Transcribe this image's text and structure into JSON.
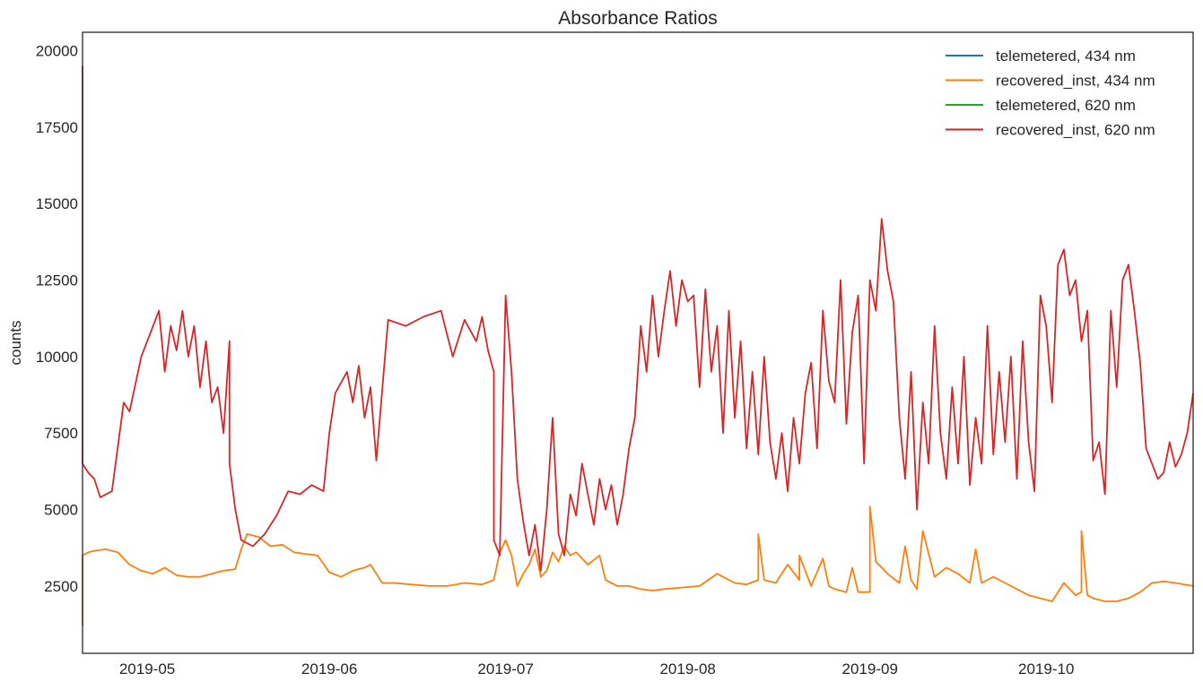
{
  "chart_data": {
    "type": "line",
    "title": "Absorbance Ratios",
    "xlabel": "",
    "ylabel": "counts",
    "x_tick_labels": [
      "2019-05",
      "2019-06",
      "2019-07",
      "2019-08",
      "2019-09",
      "2019-10"
    ],
    "x_tick_dates": [
      "2019-05-01",
      "2019-06-01",
      "2019-07-01",
      "2019-08-01",
      "2019-09-01",
      "2019-10-01"
    ],
    "xlim": [
      "2019-04-20",
      "2019-10-26"
    ],
    "y_tick_labels": [
      "2500",
      "5000",
      "7500",
      "10000",
      "12500",
      "15000",
      "17500",
      "20000"
    ],
    "y_tick_values": [
      2500,
      5000,
      7500,
      10000,
      12500,
      15000,
      17500,
      20000
    ],
    "ylim": [
      300,
      20600
    ],
    "grid": false,
    "legend_position": "top-right",
    "series": [
      {
        "name": "telemetered, 434 nm",
        "color": "#1f77b4",
        "x": [],
        "y": []
      },
      {
        "name": "recovered_inst, 434 nm",
        "color": "#ff7f0e",
        "x": [
          "2019-04-20",
          "2019-04-20",
          "2019-04-21",
          "2019-04-22",
          "2019-04-24",
          "2019-04-26",
          "2019-04-28",
          "2019-04-30",
          "2019-05-02",
          "2019-05-04",
          "2019-05-06",
          "2019-05-08",
          "2019-05-10",
          "2019-05-12",
          "2019-05-14",
          "2019-05-16",
          "2019-05-17",
          "2019-05-18",
          "2019-05-20",
          "2019-05-22",
          "2019-05-24",
          "2019-05-26",
          "2019-05-28",
          "2019-05-30",
          "2019-06-01",
          "2019-06-03",
          "2019-06-05",
          "2019-06-07",
          "2019-06-08",
          "2019-06-10",
          "2019-06-12",
          "2019-06-15",
          "2019-06-18",
          "2019-06-21",
          "2019-06-24",
          "2019-06-27",
          "2019-06-29",
          "2019-06-30",
          "2019-07-01",
          "2019-07-02",
          "2019-07-03",
          "2019-07-04",
          "2019-07-05",
          "2019-07-06",
          "2019-07-07",
          "2019-07-08",
          "2019-07-09",
          "2019-07-10",
          "2019-07-11",
          "2019-07-12",
          "2019-07-13",
          "2019-07-15",
          "2019-07-17",
          "2019-07-18",
          "2019-07-20",
          "2019-07-22",
          "2019-07-24",
          "2019-07-26",
          "2019-07-28",
          "2019-07-31",
          "2019-08-03",
          "2019-08-06",
          "2019-08-09",
          "2019-08-11",
          "2019-08-13",
          "2019-08-13",
          "2019-08-14",
          "2019-08-16",
          "2019-08-18",
          "2019-08-20",
          "2019-08-20",
          "2019-08-22",
          "2019-08-24",
          "2019-08-25",
          "2019-08-26",
          "2019-08-28",
          "2019-08-29",
          "2019-08-30",
          "2019-09-01",
          "2019-09-01",
          "2019-09-02",
          "2019-09-04",
          "2019-09-06",
          "2019-09-07",
          "2019-09-08",
          "2019-09-09",
          "2019-09-10",
          "2019-09-12",
          "2019-09-14",
          "2019-09-16",
          "2019-09-18",
          "2019-09-19",
          "2019-09-20",
          "2019-09-22",
          "2019-09-24",
          "2019-09-26",
          "2019-09-28",
          "2019-09-30",
          "2019-10-02",
          "2019-10-04",
          "2019-10-06",
          "2019-10-07",
          "2019-10-07",
          "2019-10-08",
          "2019-10-09",
          "2019-10-11",
          "2019-10-13",
          "2019-10-15",
          "2019-10-17",
          "2019-10-19",
          "2019-10-21",
          "2019-10-23",
          "2019-10-26"
        ],
        "y": [
          1200,
          3500,
          3600,
          3650,
          3700,
          3600,
          3200,
          3000,
          2900,
          3100,
          2850,
          2800,
          2800,
          2900,
          3000,
          3050,
          3700,
          4200,
          4100,
          3800,
          3850,
          3600,
          3550,
          3500,
          2950,
          2800,
          3000,
          3100,
          3200,
          2600,
          2600,
          2550,
          2500,
          2500,
          2600,
          2550,
          2700,
          3600,
          4000,
          3500,
          2500,
          2900,
          3200,
          3700,
          2800,
          3000,
          3600,
          3300,
          3800,
          3500,
          3600,
          3200,
          3500,
          2700,
          2500,
          2500,
          2400,
          2350,
          2400,
          2450,
          2500,
          2900,
          2600,
          2550,
          2700,
          4200,
          2700,
          2600,
          3200,
          2700,
          3500,
          2500,
          3400,
          2500,
          2400,
          2300,
          3100,
          2300,
          2300,
          5100,
          3300,
          2900,
          2600,
          3800,
          2700,
          2400,
          4300,
          2800,
          3100,
          2900,
          2600,
          3700,
          2600,
          2800,
          2600,
          2400,
          2200,
          2100,
          2000,
          2600,
          2200,
          2300,
          4300,
          2200,
          2100,
          2000,
          2000,
          2100,
          2300,
          2600,
          2650,
          2600,
          2500
        ]
      },
      {
        "name": "telemetered, 620 nm",
        "color": "#2ca02c",
        "x": [],
        "y": []
      },
      {
        "name": "recovered_inst, 620 nm",
        "color": "#d62728",
        "x": [
          "2019-04-20",
          "2019-04-20",
          "2019-04-21",
          "2019-04-22",
          "2019-04-23",
          "2019-04-25",
          "2019-04-27",
          "2019-04-28",
          "2019-04-30",
          "2019-05-01",
          "2019-05-03",
          "2019-05-04",
          "2019-05-05",
          "2019-05-06",
          "2019-05-07",
          "2019-05-08",
          "2019-05-09",
          "2019-05-10",
          "2019-05-11",
          "2019-05-12",
          "2019-05-13",
          "2019-05-14",
          "2019-05-15",
          "2019-05-15",
          "2019-05-16",
          "2019-05-17",
          "2019-05-19",
          "2019-05-21",
          "2019-05-23",
          "2019-05-25",
          "2019-05-27",
          "2019-05-29",
          "2019-05-31",
          "2019-06-01",
          "2019-06-02",
          "2019-06-04",
          "2019-06-05",
          "2019-06-06",
          "2019-06-07",
          "2019-06-08",
          "2019-06-09",
          "2019-06-11",
          "2019-06-14",
          "2019-06-17",
          "2019-06-20",
          "2019-06-22",
          "2019-06-24",
          "2019-06-26",
          "2019-06-27",
          "2019-06-28",
          "2019-06-29",
          "2019-06-29",
          "2019-06-30",
          "2019-07-01",
          "2019-07-02",
          "2019-07-03",
          "2019-07-04",
          "2019-07-05",
          "2019-07-06",
          "2019-07-07",
          "2019-07-08",
          "2019-07-09",
          "2019-07-10",
          "2019-07-11",
          "2019-07-12",
          "2019-07-13",
          "2019-07-14",
          "2019-07-15",
          "2019-07-16",
          "2019-07-17",
          "2019-07-18",
          "2019-07-19",
          "2019-07-20",
          "2019-07-21",
          "2019-07-22",
          "2019-07-23",
          "2019-07-24",
          "2019-07-25",
          "2019-07-26",
          "2019-07-27",
          "2019-07-28",
          "2019-07-29",
          "2019-07-30",
          "2019-07-31",
          "2019-08-01",
          "2019-08-02",
          "2019-08-03",
          "2019-08-04",
          "2019-08-05",
          "2019-08-06",
          "2019-08-07",
          "2019-08-08",
          "2019-08-09",
          "2019-08-10",
          "2019-08-11",
          "2019-08-12",
          "2019-08-13",
          "2019-08-14",
          "2019-08-15",
          "2019-08-16",
          "2019-08-17",
          "2019-08-18",
          "2019-08-19",
          "2019-08-20",
          "2019-08-21",
          "2019-08-22",
          "2019-08-23",
          "2019-08-24",
          "2019-08-25",
          "2019-08-26",
          "2019-08-27",
          "2019-08-28",
          "2019-08-29",
          "2019-08-30",
          "2019-08-31",
          "2019-09-01",
          "2019-09-02",
          "2019-09-03",
          "2019-09-04",
          "2019-09-05",
          "2019-09-06",
          "2019-09-07",
          "2019-09-08",
          "2019-09-09",
          "2019-09-10",
          "2019-09-11",
          "2019-09-12",
          "2019-09-13",
          "2019-09-14",
          "2019-09-15",
          "2019-09-16",
          "2019-09-17",
          "2019-09-18",
          "2019-09-19",
          "2019-09-20",
          "2019-09-21",
          "2019-09-22",
          "2019-09-23",
          "2019-09-24",
          "2019-09-25",
          "2019-09-26",
          "2019-09-27",
          "2019-09-28",
          "2019-09-29",
          "2019-09-30",
          "2019-10-01",
          "2019-10-02",
          "2019-10-03",
          "2019-10-04",
          "2019-10-05",
          "2019-10-06",
          "2019-10-07",
          "2019-10-08",
          "2019-10-09",
          "2019-10-10",
          "2019-10-11",
          "2019-10-12",
          "2019-10-13",
          "2019-10-14",
          "2019-10-15",
          "2019-10-16",
          "2019-10-17",
          "2019-10-18",
          "2019-10-19",
          "2019-10-20",
          "2019-10-21",
          "2019-10-22",
          "2019-10-23",
          "2019-10-24",
          "2019-10-25",
          "2019-10-26"
        ],
        "y": [
          19500,
          6500,
          6200,
          6000,
          5400,
          5600,
          8500,
          8200,
          10000,
          10500,
          11500,
          9500,
          11000,
          10200,
          11500,
          10000,
          11000,
          9000,
          10500,
          8500,
          9000,
          7500,
          10500,
          6500,
          5000,
          4000,
          3800,
          4200,
          4800,
          5600,
          5500,
          5800,
          5600,
          7500,
          8800,
          9500,
          8500,
          9700,
          8000,
          9000,
          6600,
          11200,
          11000,
          11300,
          11500,
          10000,
          11200,
          10500,
          11300,
          10200,
          9500,
          4000,
          3500,
          12000,
          9500,
          6000,
          4600,
          3500,
          4500,
          3000,
          5000,
          8000,
          4200,
          3500,
          5500,
          4800,
          6500,
          5500,
          4500,
          6000,
          5000,
          5800,
          4500,
          5500,
          7000,
          8000,
          11000,
          9500,
          12000,
          10000,
          11500,
          12800,
          11000,
          12500,
          11800,
          12000,
          9000,
          12200,
          9500,
          11000,
          7500,
          11500,
          8000,
          10500,
          7000,
          9500,
          6800,
          10000,
          7200,
          6000,
          7500,
          5600,
          8000,
          6500,
          8800,
          9800,
          7000,
          11500,
          9200,
          8500,
          12500,
          7800,
          10800,
          12000,
          6500,
          12500,
          11500,
          14500,
          12800,
          11800,
          8000,
          6000,
          9500,
          5000,
          8500,
          6500,
          11000,
          7500,
          6000,
          9000,
          6500,
          10000,
          5800,
          8000,
          6500,
          11000,
          6800,
          9500,
          7200,
          10000,
          6000,
          10500,
          7200,
          5600,
          12000,
          11000,
          8500,
          13000,
          13500,
          12000,
          12500,
          10500,
          11500,
          6600,
          7200,
          5500,
          11500,
          9000,
          12500,
          13000,
          11500,
          9800,
          7000,
          6500,
          6000,
          6200,
          7200,
          6400,
          6800,
          7500,
          8800
        ]
      }
    ]
  }
}
